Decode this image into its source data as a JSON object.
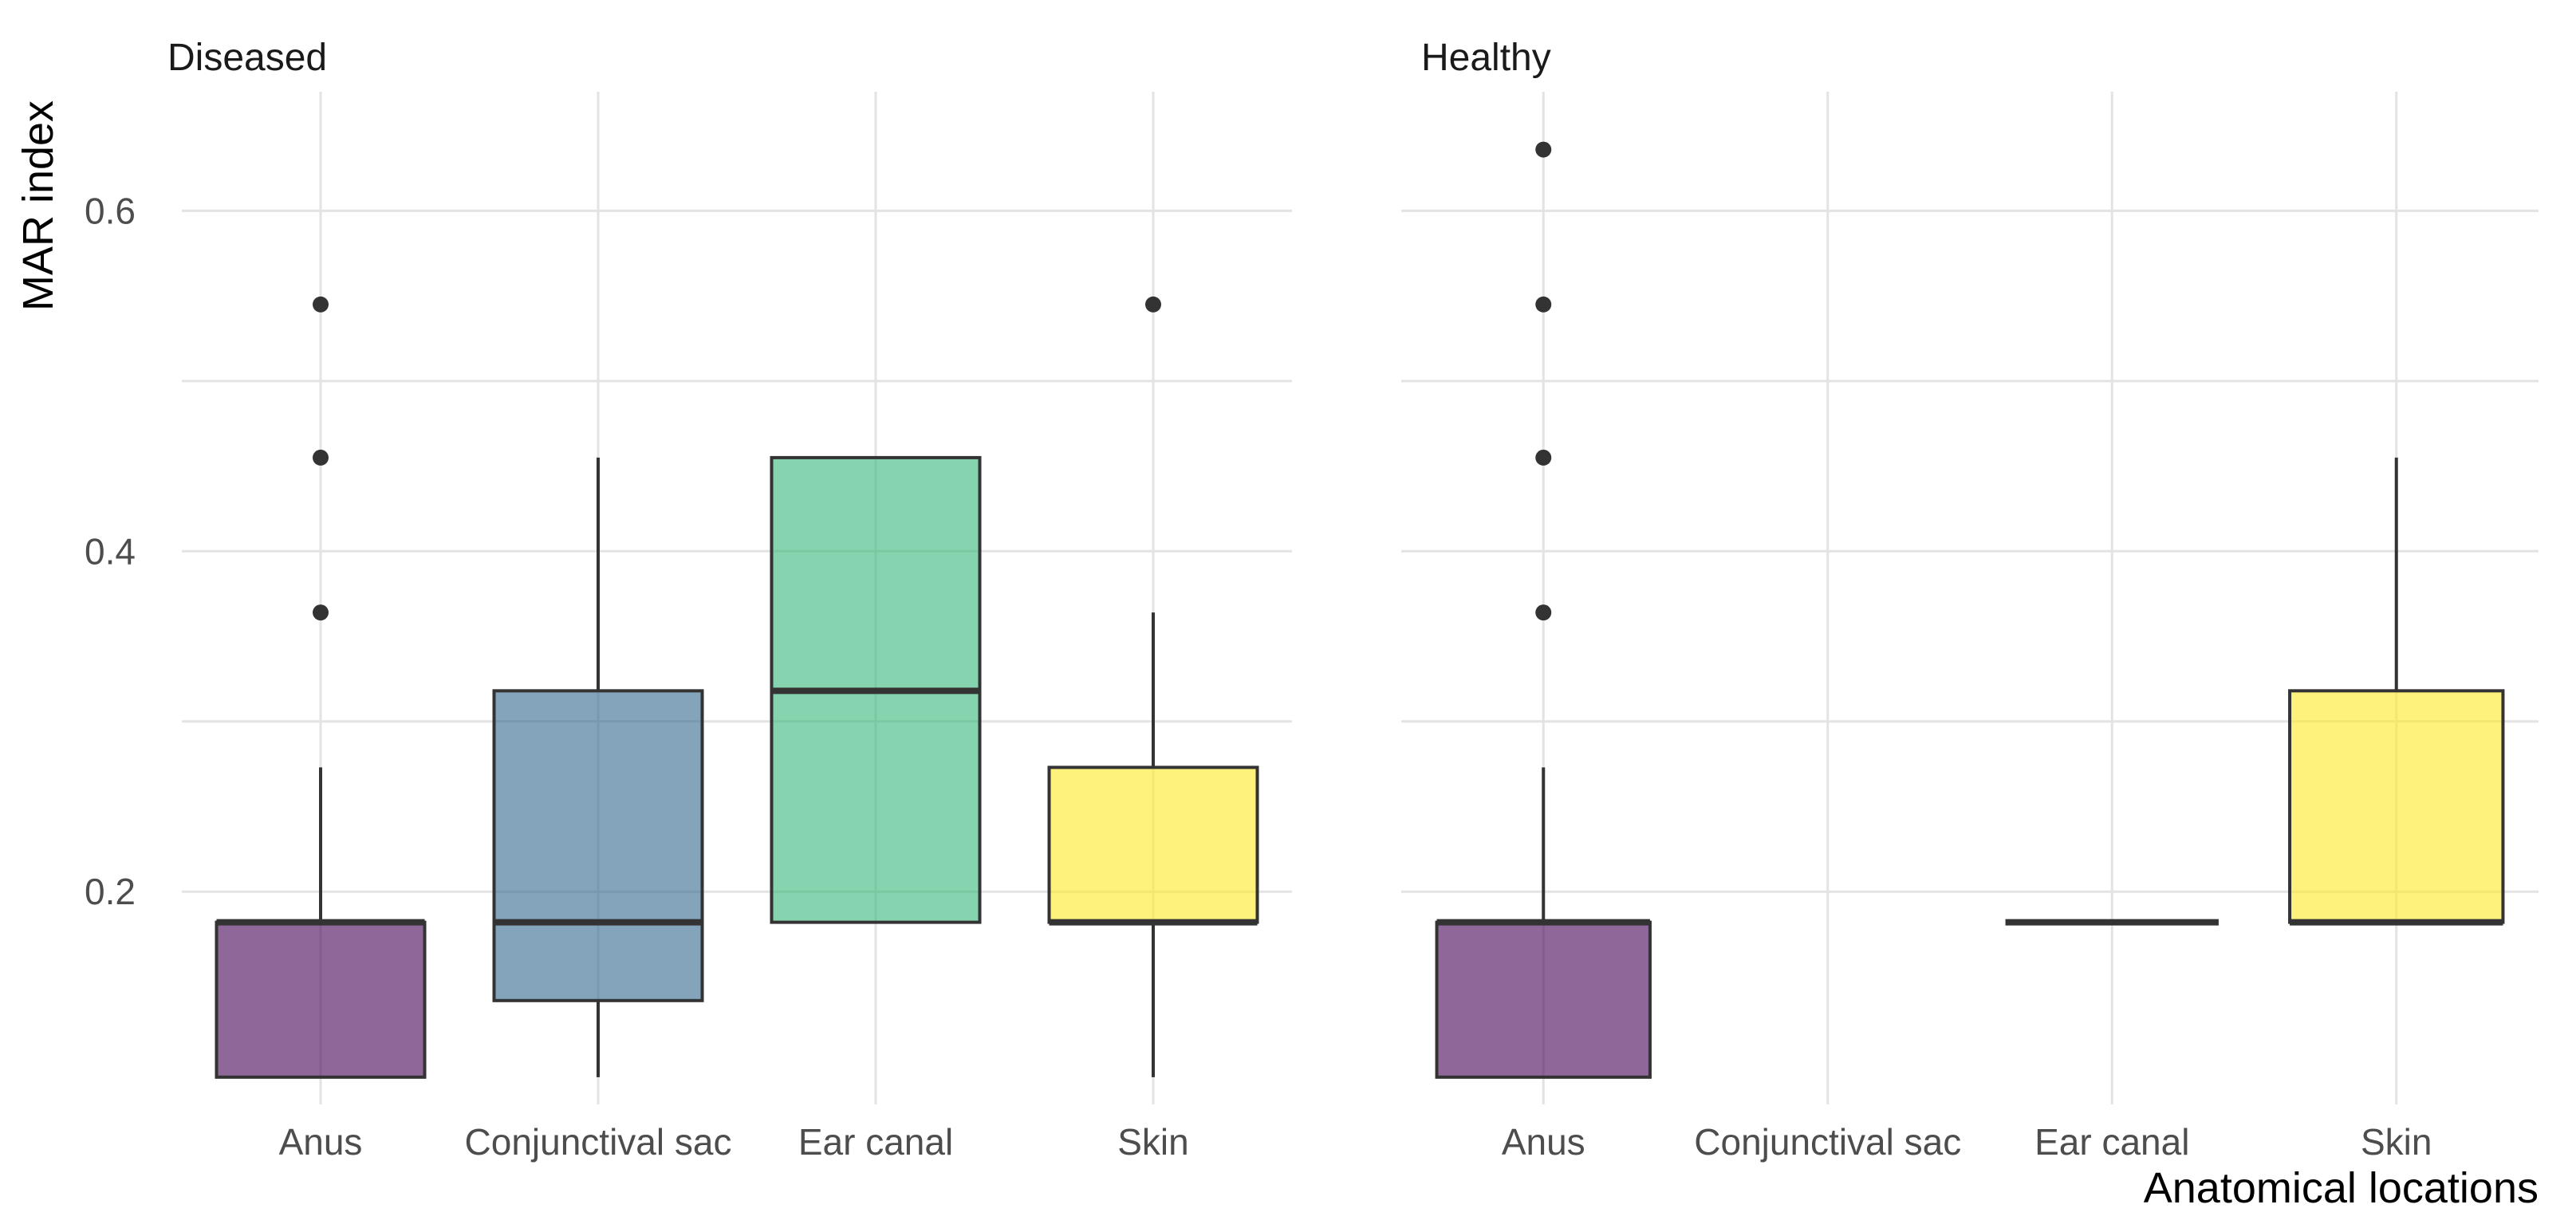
{
  "chart_data": {
    "type": "boxplot",
    "facet_by": "Condition",
    "xlabel": "Anatomical locations",
    "ylabel": "MAR index",
    "ylim": [
      0.075,
      0.67
    ],
    "yticks": [
      0.2,
      0.4,
      0.6
    ],
    "ytick_labels": [
      "0.2",
      "0.4",
      "0.6"
    ],
    "grid": true,
    "legend": "none",
    "categories": [
      "Anus",
      "Conjunctival sac",
      "Ear canal",
      "Skin"
    ],
    "colors": {
      "Anus": "#440154",
      "Conjunctival sac": "#31688E",
      "Ear canal": "#35B779",
      "Skin": "#FDE725"
    },
    "panels": [
      {
        "title": "Diseased",
        "boxes": [
          {
            "category": "Anus",
            "lower": 0.091,
            "q1": 0.091,
            "median": 0.182,
            "q3": 0.182,
            "upper": 0.273,
            "outliers": [
              0.364,
              0.455,
              0.545
            ]
          },
          {
            "category": "Conjunctival sac",
            "lower": 0.091,
            "q1": 0.136,
            "median": 0.182,
            "q3": 0.318,
            "upper": 0.455,
            "outliers": []
          },
          {
            "category": "Ear canal",
            "lower": 0.182,
            "q1": 0.182,
            "median": 0.318,
            "q3": 0.455,
            "upper": 0.455,
            "outliers": []
          },
          {
            "category": "Skin",
            "lower": 0.091,
            "q1": 0.182,
            "median": 0.182,
            "q3": 0.273,
            "upper": 0.364,
            "outliers": [
              0.545
            ]
          }
        ]
      },
      {
        "title": "Healthy",
        "boxes": [
          {
            "category": "Anus",
            "lower": 0.091,
            "q1": 0.091,
            "median": 0.182,
            "q3": 0.182,
            "upper": 0.273,
            "outliers": [
              0.364,
              0.455,
              0.545,
              0.636
            ]
          },
          {
            "category": "Ear canal",
            "lower": 0.182,
            "q1": 0.182,
            "median": 0.182,
            "q3": 0.182,
            "upper": 0.182,
            "outliers": []
          },
          {
            "category": "Skin",
            "lower": 0.182,
            "q1": 0.182,
            "median": 0.182,
            "q3": 0.318,
            "upper": 0.455,
            "outliers": []
          }
        ]
      }
    ]
  }
}
